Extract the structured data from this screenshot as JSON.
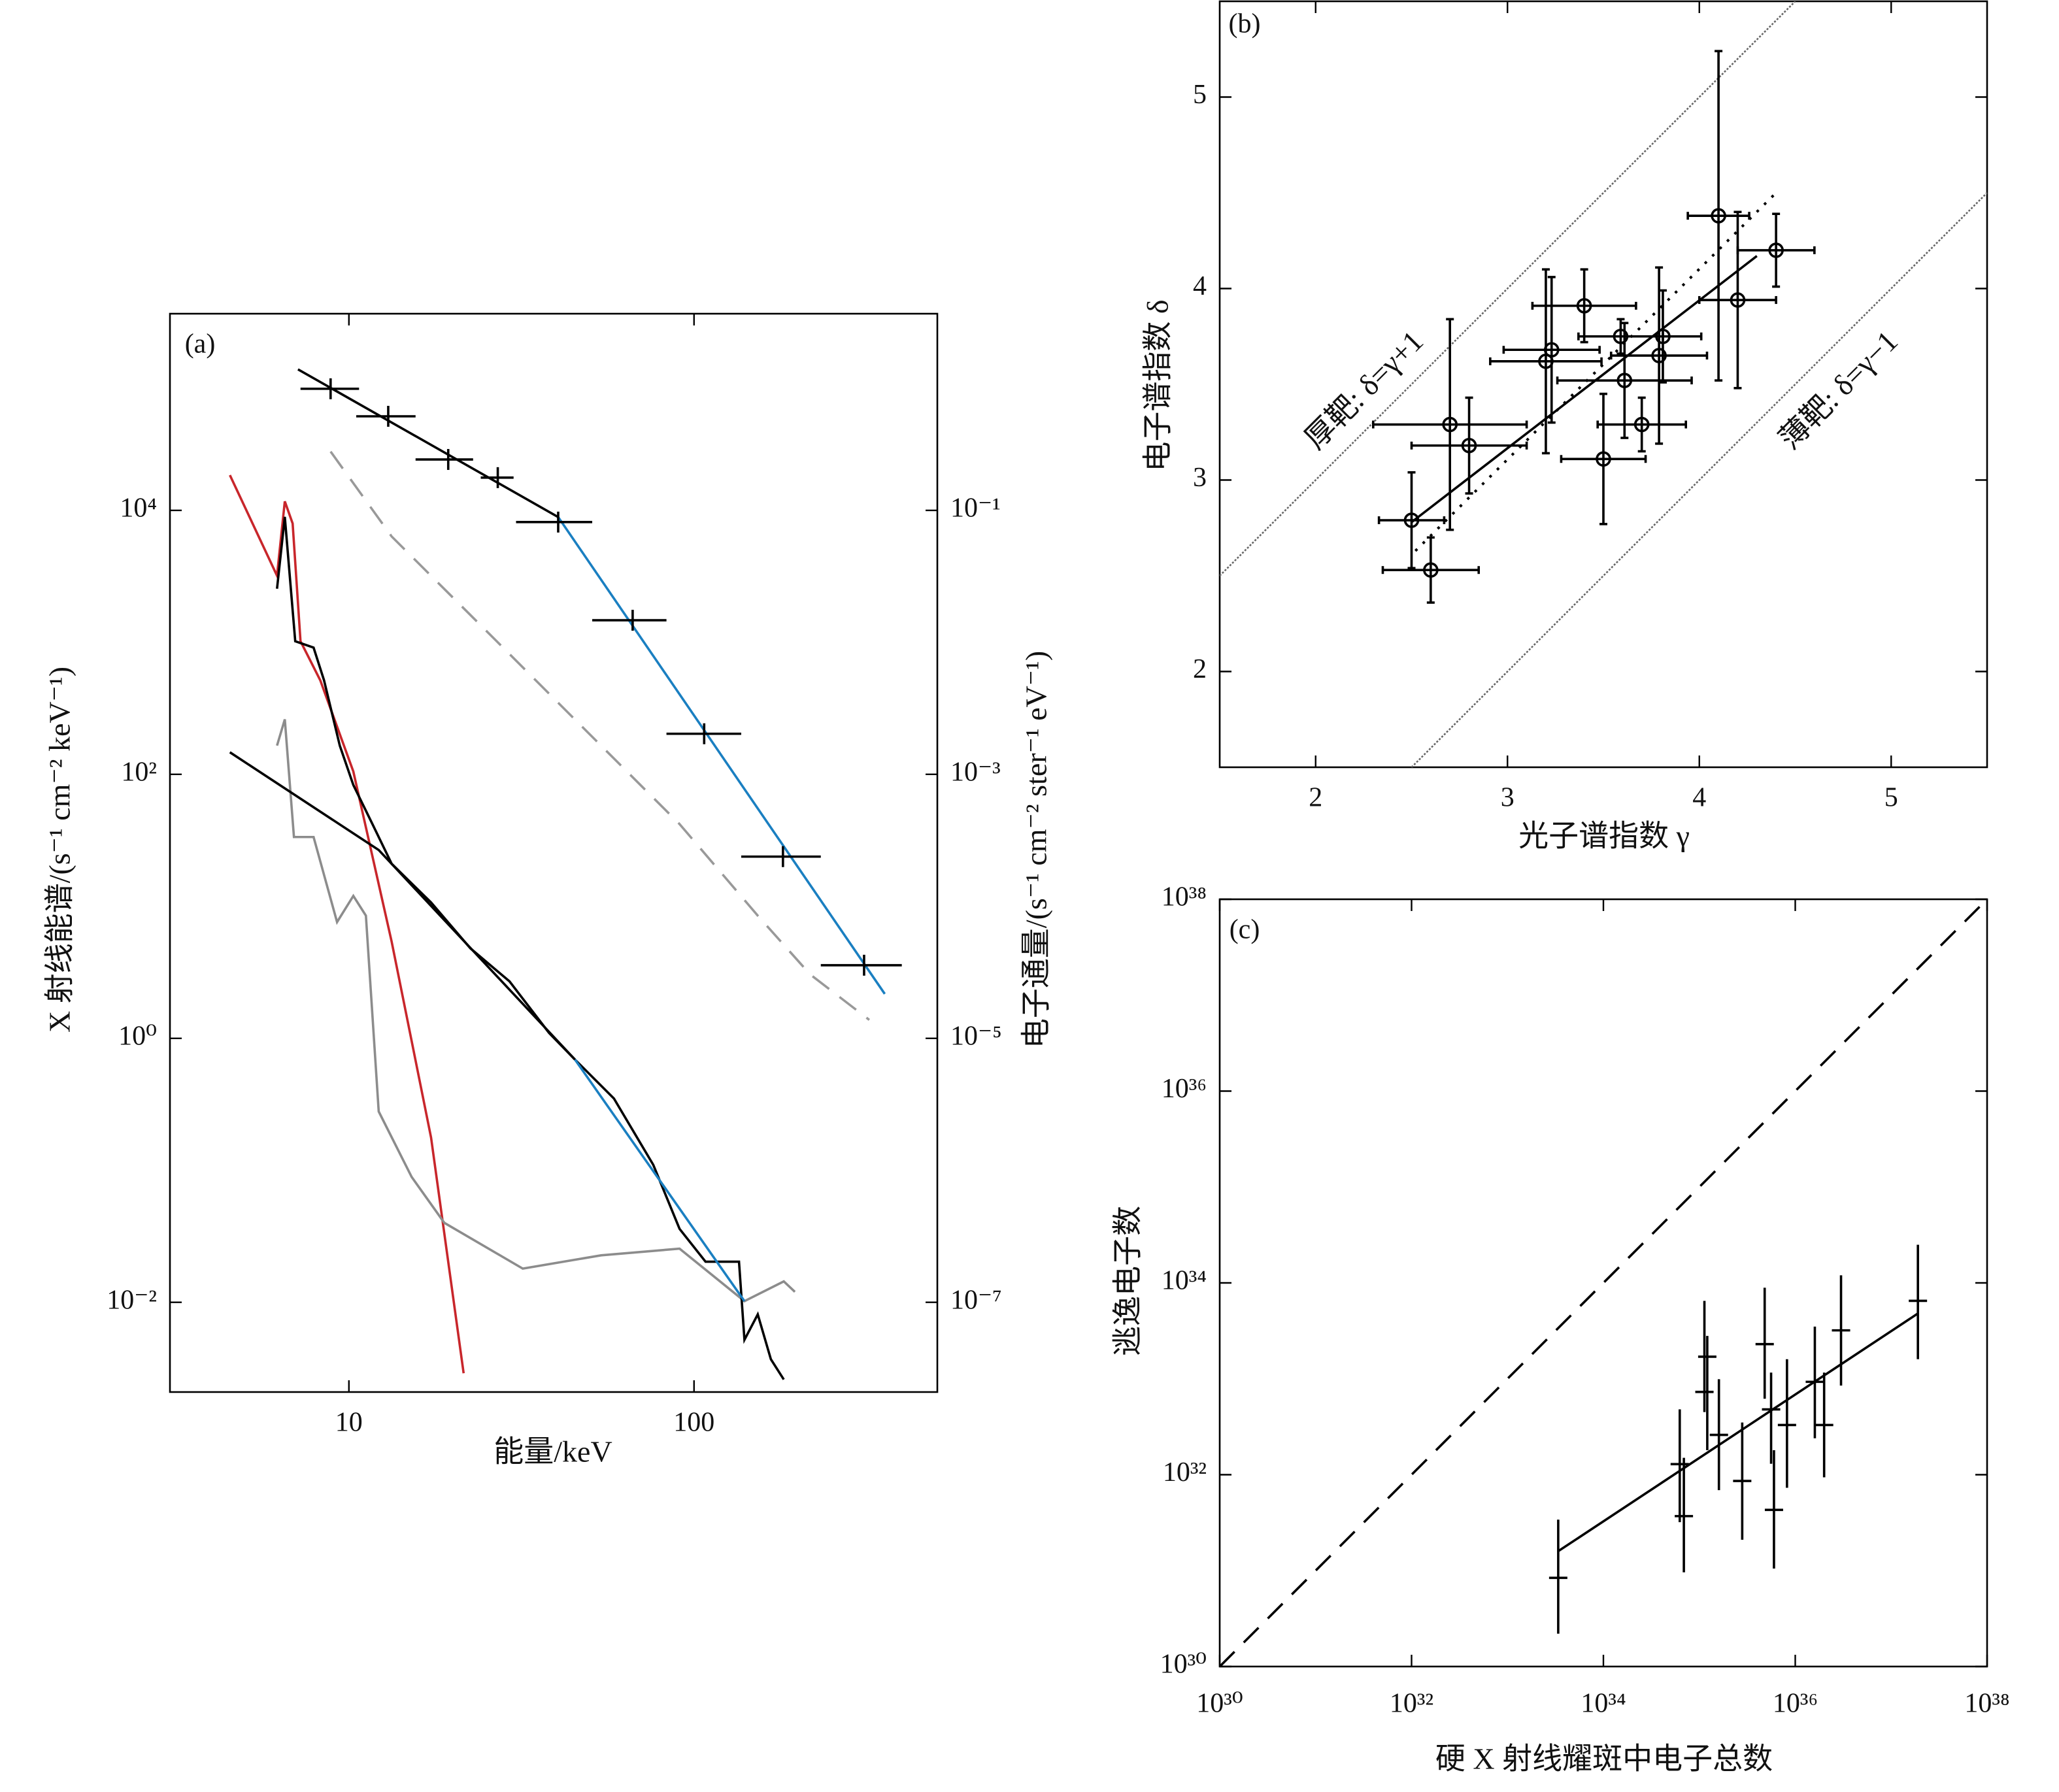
{
  "chart_data": [
    {
      "type": "line",
      "label": "(a)",
      "xlabel": "能量/keV",
      "ylabel": "X 射线能谱/(s⁻¹ cm⁻² keV⁻¹)",
      "y2label": "电子通量/(s⁻¹ cm⁻² ster⁻¹ eV⁻¹)",
      "xscale": "log",
      "yscale": "log",
      "xlim": [
        3.03,
        507
      ],
      "ylim": [
        0.00209,
        309000
      ],
      "y2lim": [
        2.09e-08,
        3.09
      ],
      "xticks": [
        10,
        100
      ],
      "yticks": [
        {
          "value": 10000,
          "label": "10⁴"
        },
        {
          "value": 100,
          "label": "10²"
        },
        {
          "value": 1,
          "label": "10⁰"
        },
        {
          "value": 0.01,
          "label": "10⁻²"
        }
      ],
      "y2ticks": [
        {
          "value": 0.1,
          "label": "10⁻¹"
        },
        {
          "value": 0.001,
          "label": "10⁻³"
        },
        {
          "value": 1e-05,
          "label": "10⁻⁵"
        },
        {
          "value": 1e-07,
          "label": "10⁻⁷"
        }
      ],
      "series": [
        {
          "color": "#c8262b",
          "line": "solid",
          "x": [
            4.52,
            6.19,
            6.52,
            6.87,
            7.24,
            8.26,
            10.3,
            13.3,
            17.3,
            21.5
          ],
          "values": [
            18500,
            3200,
            11700,
            7950,
            1020,
            516,
            105,
            5.4,
            0.177,
            0.0029
          ]
        },
        {
          "color": "#8c8c8c",
          "line": "solid",
          "x": [
            6.19,
            6.52,
            6.93,
            7.9,
            9.24,
            10.3,
            11.2,
            12.2,
            15.2,
            18.9,
            31.9,
            53.8,
            90.8,
            140,
            182,
            196
          ],
          "values": [
            165,
            261,
            33.5,
            33.5,
            7.6,
            12,
            8.5,
            0.279,
            0.089,
            0.04,
            0.018,
            0.0227,
            0.0255,
            0.0102,
            0.0144,
            0.012
          ]
        },
        {
          "color": "#000000",
          "line": "solid",
          "x": [
            6.19,
            6.52,
            6.99,
            7.9,
            8.47,
            9.41,
            10.3,
            11.7,
            13.3,
            17.3,
            22.5,
            29.2,
            38,
            45.2,
            58.6,
            76.2,
            90.8,
            108,
            135,
            140,
            153,
            167,
            182
          ],
          "values": [
            2550,
            8930,
            1020,
            912,
            516,
            165,
            83,
            42,
            21,
            10.7,
            4.8,
            2.7,
            1.1,
            0.69,
            0.35,
            0.11,
            0.036,
            0.0203,
            0.0203,
            0.0052,
            0.0081,
            0.0037,
            0.0026
          ]
        },
        {
          "color": "#000000",
          "line": "solid",
          "x": [
            4.52,
            12.2,
            45.2
          ],
          "values": [
            147,
            26.7,
            0.69
          ]
        },
        {
          "color": "#1a7fc1",
          "line": "solid",
          "x": [
            45.2,
            140
          ],
          "values": [
            0.69,
            0.0102
          ]
        },
        {
          "color": "#000000",
          "line": "solid",
          "axis": "y2",
          "x": [
            7.12,
            40.4
          ],
          "values": [
            1.17,
            0.089
          ]
        },
        {
          "color": "#1a7fc1",
          "line": "solid",
          "axis": "y2",
          "x": [
            40.4,
            357
          ],
          "values": [
            0.089,
            2.17e-05
          ]
        },
        {
          "color": "#999999",
          "line": "dashed",
          "axis": "y2",
          "x": [
            8.85,
            13.3,
            26.8,
            49.3,
            90.8,
            153,
            217,
            322
          ],
          "values": [
            0.279,
            0.0634,
            0.0102,
            0.00207,
            0.00042,
            8.5e-05,
            3.05e-05,
            1.38e-05
          ]
        },
        {
          "color": "#000000",
          "line": "none",
          "marker": "cross",
          "axis": "y2",
          "x": [
            8.85,
            13.0,
            19.4,
            27.0,
            40.4,
            66.4,
            107,
            181,
            311
          ],
          "values": [
            0.834,
            0.516,
            0.243,
            0.177,
            0.0815,
            0.0147,
            0.00203,
            0.000238,
            3.58e-05
          ],
          "x_low": [
            7.24,
            10.5,
            15.6,
            24.1,
            30.5,
            50.7,
            83.2,
            137,
            233
          ],
          "x_high": [
            10.7,
            15.6,
            22.9,
            30.0,
            50.7,
            83.2,
            137,
            233,
            400
          ]
        }
      ]
    },
    {
      "type": "scatter",
      "label": "(b)",
      "xlabel": "光子谱指数 γ",
      "ylabel": "电子谱指数 δ",
      "xlim": [
        1.5,
        5.5
      ],
      "ylim": [
        1.5,
        5.5
      ],
      "xticks": [
        2,
        3,
        4,
        5
      ],
      "yticks": [
        2,
        3,
        4,
        5
      ],
      "annotations": [
        "厚靶: δ=γ+1",
        "薄靶: δ=γ−1"
      ],
      "series": [
        {
          "color": "#666666",
          "line": "fine",
          "x": [
            1.5,
            4.5
          ],
          "values": [
            2.5,
            5.5
          ]
        },
        {
          "color": "#666666",
          "line": "fine",
          "x": [
            2.5,
            5.5
          ],
          "values": [
            1.5,
            4.5
          ]
        },
        {
          "color": "#000000",
          "line": "solid",
          "x": [
            2.5,
            4.3
          ],
          "values": [
            2.78,
            4.17
          ]
        },
        {
          "color": "#000000",
          "line": "dotted",
          "x": [
            2.52,
            4.4
          ],
          "values": [
            2.63,
            4.5
          ]
        },
        {
          "color": "#000000",
          "line": "none",
          "marker": "circle",
          "x": [
            2.5,
            2.6,
            2.7,
            2.8,
            3.2,
            3.23,
            3.4,
            3.59,
            3.61,
            3.5,
            3.7,
            3.79,
            3.81,
            4.1,
            4.2,
            4.4
          ],
          "values": [
            2.79,
            2.53,
            3.29,
            3.18,
            3.62,
            3.68,
            3.91,
            3.75,
            3.52,
            3.11,
            3.29,
            3.65,
            3.75,
            4.38,
            3.94,
            4.2
          ],
          "xerr": [
            0.17,
            0.25,
            0.4,
            0.3,
            0.29,
            0.25,
            0.27,
            0.22,
            0.35,
            0.22,
            0.23,
            0.25,
            0.2,
            0.16,
            0.2,
            0.2
          ],
          "yerr": [
            0.25,
            0.17,
            0.55,
            0.25,
            0.48,
            0.38,
            0.19,
            0.09,
            0.3,
            0.34,
            0.14,
            0.46,
            0.24,
            0.86,
            0.46,
            0.19
          ]
        }
      ]
    },
    {
      "type": "scatter",
      "label": "(c)",
      "xlabel": "硬 X 射线耀斑中电子总数",
      "ylabel": "逃逸电子数",
      "xscale": "log",
      "yscale": "log",
      "xlim": [
        1e+30,
        1e+38
      ],
      "ylim": [
        1e+30,
        1e+38
      ],
      "xticks": [
        {
          "value": 1e+30,
          "label": "10³⁰"
        },
        {
          "value": 1e+32,
          "label": "10³²"
        },
        {
          "value": 1e+34,
          "label": "10³⁴"
        },
        {
          "value": 1e+36,
          "label": "10³⁶"
        },
        {
          "value": 1e+38,
          "label": "10³⁸"
        }
      ],
      "yticks": [
        {
          "value": 1e+30,
          "label": "10³⁰"
        },
        {
          "value": 1e+32,
          "label": "10³²"
        },
        {
          "value": 1e+34,
          "label": "10³⁴"
        },
        {
          "value": 1e+36,
          "label": "10³⁶"
        },
        {
          "value": 1e+38,
          "label": "10³⁸"
        }
      ],
      "series": [
        {
          "color": "#000000",
          "line": "dashed",
          "x": [
            1e+30,
            1e+38
          ],
          "values": [
            1e+30,
            1e+38
          ]
        },
        {
          "color": "#000000",
          "line": "solid",
          "x": [
            3.4e+33,
            1.9e+37
          ],
          "values": [
            1.6e+31,
            4.8e+33
          ]
        },
        {
          "color": "#000000",
          "line": "none",
          "marker": "hbar",
          "x": [
            3.38e+33,
            6.25e+34,
            6.9e+34,
            1.13e+35,
            1.21e+35,
            1.6e+35,
            2.8e+35,
            4.8e+35,
            5.6e+35,
            6e+35,
            8.2e+35,
            1.6e+36,
            2e+36,
            3e+36,
            1.9e+37
          ],
          "values": [
            8.4e+30,
            1.29e+32,
            3.7e+31,
            7.3e+32,
            1.7e+33,
            2.6e+32,
            8.6e+31,
            2.3e+33,
            4.8e+32,
            4.3e+31,
            3.3e+32,
            9.3e+32,
            3.3e+32,
            3.2e+33,
            6.5e+33
          ],
          "y_low": [
            2.2e+30,
            3.2e+31,
            9.6e+30,
            4.5e+32,
            1.8e+32,
            6.9e+31,
            2.1e+31,
            6.2e+32,
            1.3e+32,
            1.05e+31,
            7.3e+31,
            2.4e+32,
            9.4e+31,
            8.5e+32,
            1.6e+33
          ],
          "y_high": [
            3.4e+31,
            4.8e+32,
            1.5e+32,
            6.5e+33,
            2.8e+33,
            9.9e+32,
            3.5e+32,
            8.9e+33,
            1.16e+33,
            1.8e+32,
            1.6e+33,
            3.5e+33,
            1.16e+33,
            1.2e+34,
            2.5e+34
          ]
        }
      ]
    }
  ]
}
